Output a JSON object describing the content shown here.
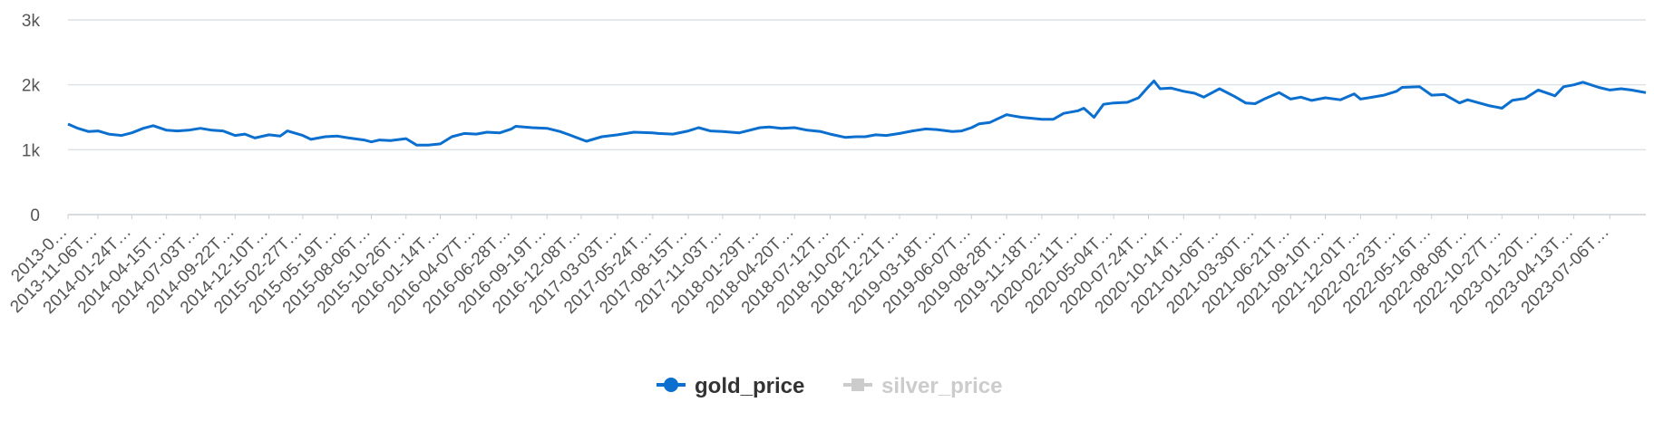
{
  "chart_data": {
    "type": "line",
    "title": "",
    "xlabel": "",
    "ylabel": "",
    "ylim": [
      0,
      3000
    ],
    "y_ticks": [
      0,
      1000,
      2000,
      3000
    ],
    "y_tick_labels": [
      "0",
      "1k",
      "2k",
      "3k"
    ],
    "x_range": [
      "2013-08-28",
      "2023-09-28"
    ],
    "x_tick_labels": [
      {
        "date": "2013-08-28",
        "label": "2013-0…"
      },
      {
        "date": "2013-11-06",
        "label": "2013-11-06T…"
      },
      {
        "date": "2014-01-24",
        "label": "2014-01-24T…"
      },
      {
        "date": "2014-04-15",
        "label": "2014-04-15T…"
      },
      {
        "date": "2014-07-03",
        "label": "2014-07-03T…"
      },
      {
        "date": "2014-09-22",
        "label": "2014-09-22T…"
      },
      {
        "date": "2014-12-10",
        "label": "2014-12-10T…"
      },
      {
        "date": "2015-02-27",
        "label": "2015-02-27T…"
      },
      {
        "date": "2015-05-19",
        "label": "2015-05-19T…"
      },
      {
        "date": "2015-08-06",
        "label": "2015-08-06T…"
      },
      {
        "date": "2015-10-26",
        "label": "2015-10-26T…"
      },
      {
        "date": "2016-01-14",
        "label": "2016-01-14T…"
      },
      {
        "date": "2016-04-07",
        "label": "2016-04-07T…"
      },
      {
        "date": "2016-06-28",
        "label": "2016-06-28T…"
      },
      {
        "date": "2016-09-19",
        "label": "2016-09-19T…"
      },
      {
        "date": "2016-12-08",
        "label": "2016-12-08T…"
      },
      {
        "date": "2017-03-03",
        "label": "2017-03-03T…"
      },
      {
        "date": "2017-05-24",
        "label": "2017-05-24T…"
      },
      {
        "date": "2017-08-15",
        "label": "2017-08-15T…"
      },
      {
        "date": "2017-11-03",
        "label": "2017-11-03T…"
      },
      {
        "date": "2018-01-29",
        "label": "2018-01-29T…"
      },
      {
        "date": "2018-04-20",
        "label": "2018-04-20T…"
      },
      {
        "date": "2018-07-12",
        "label": "2018-07-12T…"
      },
      {
        "date": "2018-10-02",
        "label": "2018-10-02T…"
      },
      {
        "date": "2018-12-21",
        "label": "2018-12-21T…"
      },
      {
        "date": "2019-03-18",
        "label": "2019-03-18T…"
      },
      {
        "date": "2019-06-07",
        "label": "2019-06-07T…"
      },
      {
        "date": "2019-08-28",
        "label": "2019-08-28T…"
      },
      {
        "date": "2019-11-18",
        "label": "2019-11-18T…"
      },
      {
        "date": "2020-02-11",
        "label": "2020-02-11T…"
      },
      {
        "date": "2020-05-04",
        "label": "2020-05-04T…"
      },
      {
        "date": "2020-07-24",
        "label": "2020-07-24T…"
      },
      {
        "date": "2020-10-14",
        "label": "2020-10-14T…"
      },
      {
        "date": "2021-01-06",
        "label": "2021-01-06T…"
      },
      {
        "date": "2021-03-30",
        "label": "2021-03-30T…"
      },
      {
        "date": "2021-06-21",
        "label": "2021-06-21T…"
      },
      {
        "date": "2021-09-10",
        "label": "2021-09-10T…"
      },
      {
        "date": "2021-12-01",
        "label": "2021-12-01T…"
      },
      {
        "date": "2022-02-23",
        "label": "2022-02-23T…"
      },
      {
        "date": "2022-05-16",
        "label": "2022-05-16T…"
      },
      {
        "date": "2022-08-08",
        "label": "2022-08-08T…"
      },
      {
        "date": "2022-10-27",
        "label": "2022-10-27T…"
      },
      {
        "date": "2023-01-20",
        "label": "2023-01-20T…"
      },
      {
        "date": "2023-04-13",
        "label": "2023-04-13T…"
      },
      {
        "date": "2023-07-06",
        "label": "2023-07-06T…"
      }
    ],
    "grid": true,
    "legend_position": "bottom-center",
    "series": [
      {
        "name": "gold_price",
        "color": "#0b6fcf",
        "visible": true,
        "marker": "circle",
        "x": [
          "2013-08-28",
          "2013-09-20",
          "2013-10-15",
          "2013-11-06",
          "2013-12-01",
          "2013-12-31",
          "2014-01-24",
          "2014-02-20",
          "2014-03-15",
          "2014-04-15",
          "2014-05-10",
          "2014-06-05",
          "2014-07-03",
          "2014-07-30",
          "2014-08-25",
          "2014-09-22",
          "2014-10-15",
          "2014-11-07",
          "2014-12-10",
          "2015-01-05",
          "2015-01-22",
          "2015-02-27",
          "2015-03-18",
          "2015-04-20",
          "2015-05-19",
          "2015-06-15",
          "2015-07-20",
          "2015-08-06",
          "2015-08-25",
          "2015-09-20",
          "2015-10-26",
          "2015-11-20",
          "2015-12-17",
          "2016-01-14",
          "2016-02-10",
          "2016-03-10",
          "2016-04-07",
          "2016-05-02",
          "2016-06-01",
          "2016-06-28",
          "2016-07-08",
          "2016-08-15",
          "2016-09-19",
          "2016-10-20",
          "2016-11-10",
          "2016-12-08",
          "2016-12-20",
          "2017-01-25",
          "2017-03-03",
          "2017-04-10",
          "2017-05-24",
          "2017-06-06",
          "2017-07-10",
          "2017-08-15",
          "2017-09-08",
          "2017-10-05",
          "2017-11-03",
          "2017-12-12",
          "2018-01-29",
          "2018-02-20",
          "2018-03-20",
          "2018-04-20",
          "2018-05-20",
          "2018-06-20",
          "2018-07-12",
          "2018-08-16",
          "2018-09-10",
          "2018-10-02",
          "2018-10-26",
          "2018-11-20",
          "2018-12-21",
          "2019-01-20",
          "2019-02-20",
          "2019-03-18",
          "2019-04-23",
          "2019-05-15",
          "2019-06-07",
          "2019-06-25",
          "2019-07-20",
          "2019-08-28",
          "2019-09-04",
          "2019-10-01",
          "2019-11-18",
          "2019-12-15",
          "2020-01-08",
          "2020-02-11",
          "2020-02-24",
          "2020-03-19",
          "2020-04-10",
          "2020-05-04",
          "2020-06-05",
          "2020-07-01",
          "2020-07-24",
          "2020-08-06",
          "2020-08-20",
          "2020-09-15",
          "2020-10-14",
          "2020-11-09",
          "2020-11-30",
          "2021-01-06",
          "2021-02-10",
          "2021-03-08",
          "2021-03-30",
          "2021-04-20",
          "2021-05-25",
          "2021-06-21",
          "2021-07-15",
          "2021-08-09",
          "2021-09-10",
          "2021-10-15",
          "2021-11-16",
          "2021-12-01",
          "2021-12-20",
          "2022-01-25",
          "2022-02-23",
          "2022-03-08",
          "2022-04-18",
          "2022-05-16",
          "2022-06-15",
          "2022-07-20",
          "2022-08-08",
          "2022-09-26",
          "2022-10-27",
          "2022-11-20",
          "2022-12-20",
          "2023-01-20",
          "2023-02-28",
          "2023-03-20",
          "2023-04-13",
          "2023-05-04",
          "2023-06-10",
          "2023-07-06",
          "2023-08-01",
          "2023-08-25",
          "2023-09-28"
        ],
        "values": [
          1395,
          1330,
          1280,
          1290,
          1240,
          1220,
          1260,
          1330,
          1370,
          1300,
          1290,
          1300,
          1330,
          1300,
          1290,
          1220,
          1240,
          1180,
          1230,
          1210,
          1290,
          1220,
          1160,
          1200,
          1210,
          1180,
          1150,
          1120,
          1150,
          1140,
          1170,
          1070,
          1070,
          1090,
          1200,
          1250,
          1240,
          1270,
          1260,
          1320,
          1360,
          1340,
          1330,
          1280,
          1230,
          1160,
          1130,
          1200,
          1230,
          1270,
          1260,
          1250,
          1240,
          1290,
          1340,
          1290,
          1280,
          1260,
          1340,
          1350,
          1330,
          1340,
          1300,
          1280,
          1240,
          1190,
          1200,
          1200,
          1230,
          1220,
          1250,
          1290,
          1320,
          1310,
          1280,
          1290,
          1340,
          1400,
          1420,
          1540,
          1530,
          1500,
          1470,
          1470,
          1560,
          1600,
          1640,
          1500,
          1700,
          1720,
          1730,
          1800,
          1970,
          2060,
          1940,
          1950,
          1900,
          1870,
          1810,
          1940,
          1820,
          1720,
          1710,
          1780,
          1880,
          1780,
          1810,
          1760,
          1800,
          1770,
          1860,
          1780,
          1800,
          1840,
          1900,
          1960,
          1970,
          1840,
          1850,
          1720,
          1770,
          1680,
          1640,
          1760,
          1790,
          1920,
          1830,
          1970,
          2000,
          2040,
          1960,
          1920,
          1940,
          1920,
          1880
        ]
      },
      {
        "name": "silver_price",
        "color": "#cccccc",
        "visible": false,
        "marker": "square"
      }
    ]
  }
}
